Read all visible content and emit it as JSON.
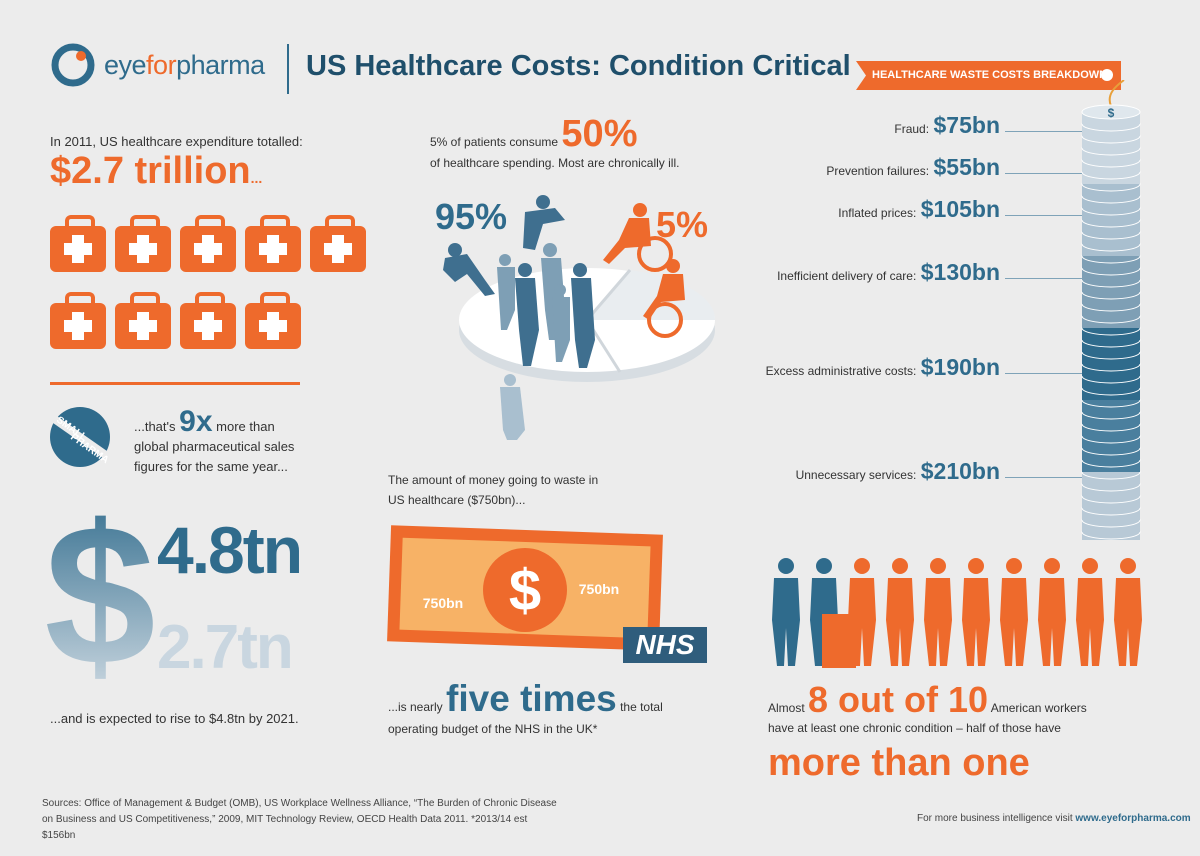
{
  "header": {
    "logo_part1": "eye",
    "logo_part2": "for",
    "logo_part3": "pharma",
    "title": "US Healthcare Costs: Condition Critical"
  },
  "banner": {
    "label": "HEALTHCARE WASTE COSTS BREAKDOWN"
  },
  "expenditure": {
    "label": "In 2011, US healthcare expenditure totalled:",
    "value": "$2.7 trillion",
    "ellipsis": "...",
    "kit_count": 9,
    "kit_icon": "first-aid-kit-icon"
  },
  "comparison": {
    "badge_line1": "SMALL",
    "badge_line2": "PHARMA",
    "prefix": "...that's",
    "multiplier": "9x",
    "suffix": "more than",
    "line2": "global pharmaceutical sales",
    "line3": "figures for the same year..."
  },
  "projection": {
    "dollar_sign": "$",
    "future_value": "4.8tn",
    "current_value": "2.7tn",
    "note": "...and is expected to rise to $4.8tn by 2021."
  },
  "patients": {
    "prefix": "5% of patients consume",
    "share": "50%",
    "line2": "of healthcare spending. Most are chronically ill.",
    "majority_pct": "95%",
    "minority_pct": "5%"
  },
  "waste": {
    "line1": "The amount of money going to waste in",
    "line2": "US healthcare ($750bn)...",
    "note_left": "750bn",
    "note_right": "750bn",
    "note_symbol": "$",
    "nhs_label": "NHS",
    "five_prefix": "...is nearly",
    "five_times": "five times",
    "five_suffix": "the total",
    "five_line2": "operating budget of the NHS in the UK*"
  },
  "breakdown": [
    {
      "label": "Fraud:",
      "value": "$75bn"
    },
    {
      "label": "Prevention failures:",
      "value": "$55bn"
    },
    {
      "label": "Inflated prices:",
      "value": "$105bn"
    },
    {
      "label": "Inefficient delivery of care:",
      "value": "$130bn"
    },
    {
      "label": "Excess administrative costs:",
      "value": "$190bn"
    },
    {
      "label": "Unnecessary services:",
      "value": "$210bn"
    }
  ],
  "workers": {
    "prefix": "Almost",
    "stat": "8 out of 10",
    "suffix": "American workers",
    "line2": "have at least one chronic condition –  half of those have",
    "emphasis": "more than one",
    "total_figures": 10,
    "chronic_figures": 8
  },
  "footer": {
    "sources_line1": "Sources: Office of Management & Budget (OMB), US Workplace Wellness Alliance, “The Burden of Chronic Disease",
    "sources_line2": "on Business and US Competitiveness,” 2009, MIT Technology Review, OECD Health Data 2011. *2013/14 est $156bn",
    "cta": "For more business intelligence visit",
    "url": "www.eyeforpharma.com"
  },
  "colors": {
    "orange": "#ee6a2c",
    "blue": "#2f6b8c",
    "light_blue": "#c9d6e0",
    "background": "#ececec"
  }
}
